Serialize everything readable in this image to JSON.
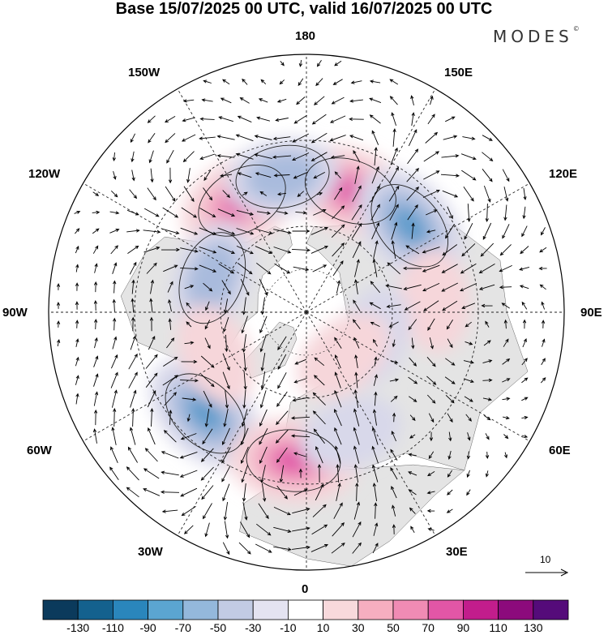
{
  "title": "Base 15/07/2025 00 UTC, valid 16/07/2025 00 UTC",
  "brand": "MODES",
  "brand_mark": "©",
  "longitude_labels": {
    "top": "180",
    "bottom": "0",
    "left": "90W",
    "right": "90E",
    "upper_left_outer": "150W",
    "upper_left": "120W",
    "lower_left": "60W",
    "lower_left_inner": "30W",
    "upper_right_outer": "150E",
    "upper_right": "120E",
    "lower_right": "60E",
    "lower_right_inner": "30E"
  },
  "reference_vector": {
    "label": "10"
  },
  "colorbar": {
    "colors": [
      "#0b3a5c",
      "#14618e",
      "#2a86bc",
      "#5ba5d1",
      "#94b8dc",
      "#c2cbe4",
      "#e4e3f1",
      "#ffffff",
      "#f8d9dc",
      "#f6aec0",
      "#f08bb4",
      "#e256a6",
      "#c21d8c",
      "#8c0a7c",
      "#550b7a"
    ],
    "tick_labels": [
      "-130",
      "-110",
      "-90",
      "-70",
      "-50",
      "-30",
      "-10",
      "10",
      "30",
      "50",
      "70",
      "90",
      "110",
      "130"
    ]
  },
  "map_colors": {
    "land_mask": "#e4e4e4",
    "positive_weak": "#f6d6da",
    "positive_mid": "#f2a8c2",
    "positive_strong": "#e25aa8",
    "negative_weak": "#d8d8ea",
    "negative_mid": "#a9bbdd",
    "negative_strong": "#5f9ccc"
  },
  "anomaly_centers": [
    {
      "sign": "positive",
      "level": "strong",
      "lon": -150,
      "lat": 45
    },
    {
      "sign": "positive",
      "level": "strong",
      "lon": 160,
      "lat": 45
    },
    {
      "sign": "negative",
      "level": "mid",
      "lon": -170,
      "lat": 42
    },
    {
      "sign": "negative",
      "level": "strong",
      "lon": 130,
      "lat": 43
    },
    {
      "sign": "negative",
      "level": "mid",
      "lon": -110,
      "lat": 55
    },
    {
      "sign": "positive",
      "level": "weak",
      "lon": 95,
      "lat": 45
    },
    {
      "sign": "negative",
      "level": "weak",
      "lon": 70,
      "lat": 65
    },
    {
      "sign": "positive",
      "level": "weak",
      "lon": 40,
      "lat": 70
    },
    {
      "sign": "negative",
      "level": "strong",
      "lon": -45,
      "lat": 40
    },
    {
      "sign": "positive",
      "level": "strong",
      "lon": -5,
      "lat": 38
    },
    {
      "sign": "negative",
      "level": "weak",
      "lon": 20,
      "lat": 45
    },
    {
      "sign": "positive",
      "level": "weak",
      "lon": -65,
      "lat": 55
    }
  ]
}
